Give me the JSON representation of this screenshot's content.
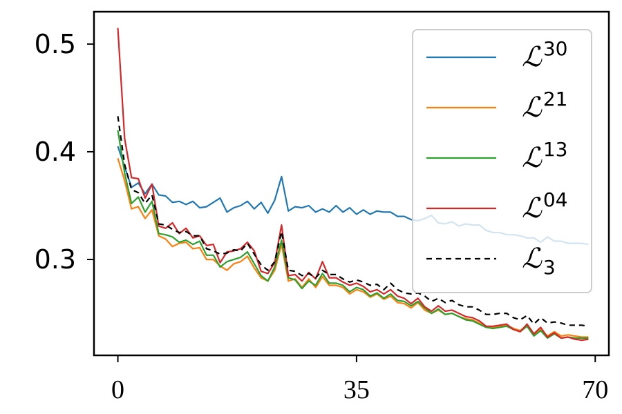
{
  "chart_data": {
    "type": "line",
    "xticks": [
      "0",
      "35",
      "70"
    ],
    "yticks": [
      "0.3",
      "0.4",
      "0.5"
    ],
    "xlim": [
      -3.5,
      72
    ],
    "ylim": [
      0.211,
      0.53
    ],
    "grid": false,
    "legend_position": "top-right",
    "series": [
      {
        "name": "L^30",
        "legend_base": "ℒ",
        "legend_sup": "30",
        "legend_sub": "",
        "color": "#1f77b4",
        "dash": "",
        "x": [
          0,
          1,
          2,
          3,
          4,
          5,
          6,
          7,
          8,
          9,
          10,
          11,
          12,
          13,
          14,
          15,
          16,
          17,
          18,
          19,
          20,
          21,
          22,
          23,
          24,
          25,
          26,
          27,
          28,
          29,
          30,
          31,
          32,
          33,
          34,
          35,
          36,
          37,
          38,
          39,
          40,
          41,
          42,
          43,
          44,
          45,
          46,
          47,
          48,
          49,
          50,
          51,
          52,
          53,
          54,
          55,
          56,
          57,
          58,
          59,
          60,
          61,
          62,
          63,
          64,
          65,
          66,
          67,
          68,
          69
        ],
        "values": [
          0.405,
          0.386,
          0.367,
          0.371,
          0.361,
          0.37,
          0.36,
          0.359,
          0.353,
          0.354,
          0.351,
          0.354,
          0.348,
          0.349,
          0.353,
          0.357,
          0.344,
          0.348,
          0.35,
          0.354,
          0.347,
          0.353,
          0.343,
          0.355,
          0.377,
          0.345,
          0.349,
          0.348,
          0.35,
          0.344,
          0.347,
          0.344,
          0.35,
          0.344,
          0.348,
          0.342,
          0.346,
          0.342,
          0.345,
          0.344,
          0.344,
          0.34,
          0.34,
          0.337,
          0.336,
          0.338,
          0.341,
          0.334,
          0.333,
          0.335,
          0.331,
          0.333,
          0.332,
          0.332,
          0.327,
          0.325,
          0.325,
          0.323,
          0.323,
          0.322,
          0.32,
          0.32,
          0.316,
          0.321,
          0.317,
          0.317,
          0.315,
          0.315,
          0.315,
          0.314
        ]
      },
      {
        "name": "L^21",
        "legend_base": "ℒ",
        "legend_sup": "21",
        "legend_sub": "",
        "color": "#ff7f0e",
        "dash": "",
        "x": [
          0,
          1,
          2,
          3,
          4,
          5,
          6,
          7,
          8,
          9,
          10,
          11,
          12,
          13,
          14,
          15,
          16,
          17,
          18,
          19,
          20,
          21,
          22,
          23,
          24,
          25,
          26,
          27,
          28,
          29,
          30,
          31,
          32,
          33,
          34,
          35,
          36,
          37,
          38,
          39,
          40,
          41,
          42,
          43,
          44,
          45,
          46,
          47,
          48,
          49,
          50,
          51,
          52,
          53,
          54,
          55,
          56,
          57,
          58,
          59,
          60,
          61,
          62,
          63,
          64,
          65,
          66,
          67,
          68,
          69
        ],
        "values": [
          0.394,
          0.373,
          0.347,
          0.349,
          0.338,
          0.346,
          0.322,
          0.319,
          0.312,
          0.315,
          0.316,
          0.31,
          0.311,
          0.3,
          0.3,
          0.294,
          0.29,
          0.296,
          0.298,
          0.303,
          0.292,
          0.283,
          0.28,
          0.29,
          0.314,
          0.28,
          0.282,
          0.274,
          0.282,
          0.274,
          0.284,
          0.276,
          0.276,
          0.274,
          0.268,
          0.272,
          0.27,
          0.265,
          0.268,
          0.263,
          0.266,
          0.26,
          0.259,
          0.255,
          0.26,
          0.253,
          0.25,
          0.253,
          0.249,
          0.25,
          0.247,
          0.245,
          0.244,
          0.241,
          0.237,
          0.237,
          0.238,
          0.239,
          0.236,
          0.234,
          0.239,
          0.23,
          0.235,
          0.229,
          0.233,
          0.229,
          0.23,
          0.229,
          0.228,
          0.228
        ]
      },
      {
        "name": "L^13",
        "legend_base": "ℒ",
        "legend_sup": "13",
        "legend_sub": "",
        "color": "#2ca02c",
        "dash": "",
        "x": [
          0,
          1,
          2,
          3,
          4,
          5,
          6,
          7,
          8,
          9,
          10,
          11,
          12,
          13,
          14,
          15,
          16,
          17,
          18,
          19,
          20,
          21,
          22,
          23,
          24,
          25,
          26,
          27,
          28,
          29,
          30,
          31,
          32,
          33,
          34,
          35,
          36,
          37,
          38,
          39,
          40,
          41,
          42,
          43,
          44,
          45,
          46,
          47,
          48,
          49,
          50,
          51,
          52,
          53,
          54,
          55,
          56,
          57,
          58,
          59,
          60,
          61,
          62,
          63,
          64,
          65,
          66,
          67,
          68,
          69
        ],
        "values": [
          0.42,
          0.38,
          0.352,
          0.358,
          0.344,
          0.354,
          0.324,
          0.323,
          0.321,
          0.316,
          0.318,
          0.314,
          0.317,
          0.304,
          0.304,
          0.293,
          0.298,
          0.3,
          0.302,
          0.307,
          0.296,
          0.285,
          0.28,
          0.293,
          0.318,
          0.283,
          0.281,
          0.273,
          0.28,
          0.276,
          0.287,
          0.278,
          0.278,
          0.276,
          0.27,
          0.274,
          0.272,
          0.266,
          0.269,
          0.264,
          0.268,
          0.262,
          0.261,
          0.257,
          0.261,
          0.255,
          0.25,
          0.254,
          0.249,
          0.25,
          0.247,
          0.244,
          0.243,
          0.24,
          0.237,
          0.236,
          0.237,
          0.238,
          0.235,
          0.233,
          0.238,
          0.229,
          0.234,
          0.227,
          0.231,
          0.227,
          0.228,
          0.227,
          0.227,
          0.227
        ]
      },
      {
        "name": "L^04",
        "legend_base": "ℒ",
        "legend_sup": "04",
        "legend_sub": "",
        "color": "#d62728",
        "dash": "",
        "x": [
          0,
          1,
          2,
          3,
          4,
          5,
          6,
          7,
          8,
          9,
          10,
          11,
          12,
          13,
          14,
          15,
          16,
          17,
          18,
          19,
          20,
          21,
          22,
          23,
          24,
          25,
          26,
          27,
          28,
          29,
          30,
          31,
          32,
          33,
          34,
          35,
          36,
          37,
          38,
          39,
          40,
          41,
          42,
          43,
          44,
          45,
          46,
          47,
          48,
          49,
          50,
          51,
          52,
          53,
          54,
          55,
          56,
          57,
          58,
          59,
          60,
          61,
          62,
          63,
          64,
          65,
          66,
          67,
          68,
          69
        ],
        "values": [
          0.515,
          0.412,
          0.376,
          0.375,
          0.357,
          0.37,
          0.331,
          0.329,
          0.334,
          0.324,
          0.329,
          0.32,
          0.322,
          0.313,
          0.314,
          0.297,
          0.307,
          0.308,
          0.31,
          0.316,
          0.308,
          0.289,
          0.287,
          0.297,
          0.332,
          0.285,
          0.286,
          0.28,
          0.288,
          0.282,
          0.298,
          0.283,
          0.283,
          0.279,
          0.276,
          0.278,
          0.275,
          0.27,
          0.272,
          0.268,
          0.272,
          0.266,
          0.264,
          0.259,
          0.264,
          0.256,
          0.252,
          0.257,
          0.252,
          0.253,
          0.25,
          0.247,
          0.246,
          0.243,
          0.238,
          0.238,
          0.239,
          0.24,
          0.235,
          0.233,
          0.24,
          0.231,
          0.237,
          0.228,
          0.232,
          0.227,
          0.228,
          0.226,
          0.225,
          0.226
        ]
      },
      {
        "name": "L_3",
        "legend_base": "ℒ",
        "legend_sup": "",
        "legend_sub": "3",
        "color": "#000000",
        "dash": "8,6",
        "x": [
          0,
          1,
          2,
          3,
          4,
          5,
          6,
          7,
          8,
          9,
          10,
          11,
          12,
          13,
          14,
          15,
          16,
          17,
          18,
          19,
          20,
          21,
          22,
          23,
          24,
          25,
          26,
          27,
          28,
          29,
          30,
          31,
          32,
          33,
          34,
          35,
          36,
          37,
          38,
          39,
          40,
          41,
          42,
          43,
          44,
          45,
          46,
          47,
          48,
          49,
          50,
          51,
          52,
          53,
          54,
          55,
          56,
          57,
          58,
          59,
          60,
          61,
          62,
          63,
          64,
          65,
          66,
          67,
          68,
          69
        ],
        "values": [
          0.433,
          0.388,
          0.365,
          0.362,
          0.352,
          0.36,
          0.333,
          0.332,
          0.328,
          0.325,
          0.326,
          0.322,
          0.322,
          0.31,
          0.308,
          0.305,
          0.306,
          0.309,
          0.308,
          0.315,
          0.305,
          0.295,
          0.29,
          0.298,
          0.326,
          0.29,
          0.289,
          0.285,
          0.287,
          0.283,
          0.29,
          0.286,
          0.286,
          0.282,
          0.279,
          0.281,
          0.279,
          0.276,
          0.277,
          0.272,
          0.278,
          0.272,
          0.269,
          0.268,
          0.269,
          0.266,
          0.261,
          0.264,
          0.26,
          0.262,
          0.258,
          0.256,
          0.256,
          0.253,
          0.249,
          0.249,
          0.25,
          0.25,
          0.246,
          0.244,
          0.248,
          0.24,
          0.246,
          0.241,
          0.242,
          0.241,
          0.239,
          0.239,
          0.239,
          0.238
        ]
      }
    ]
  }
}
